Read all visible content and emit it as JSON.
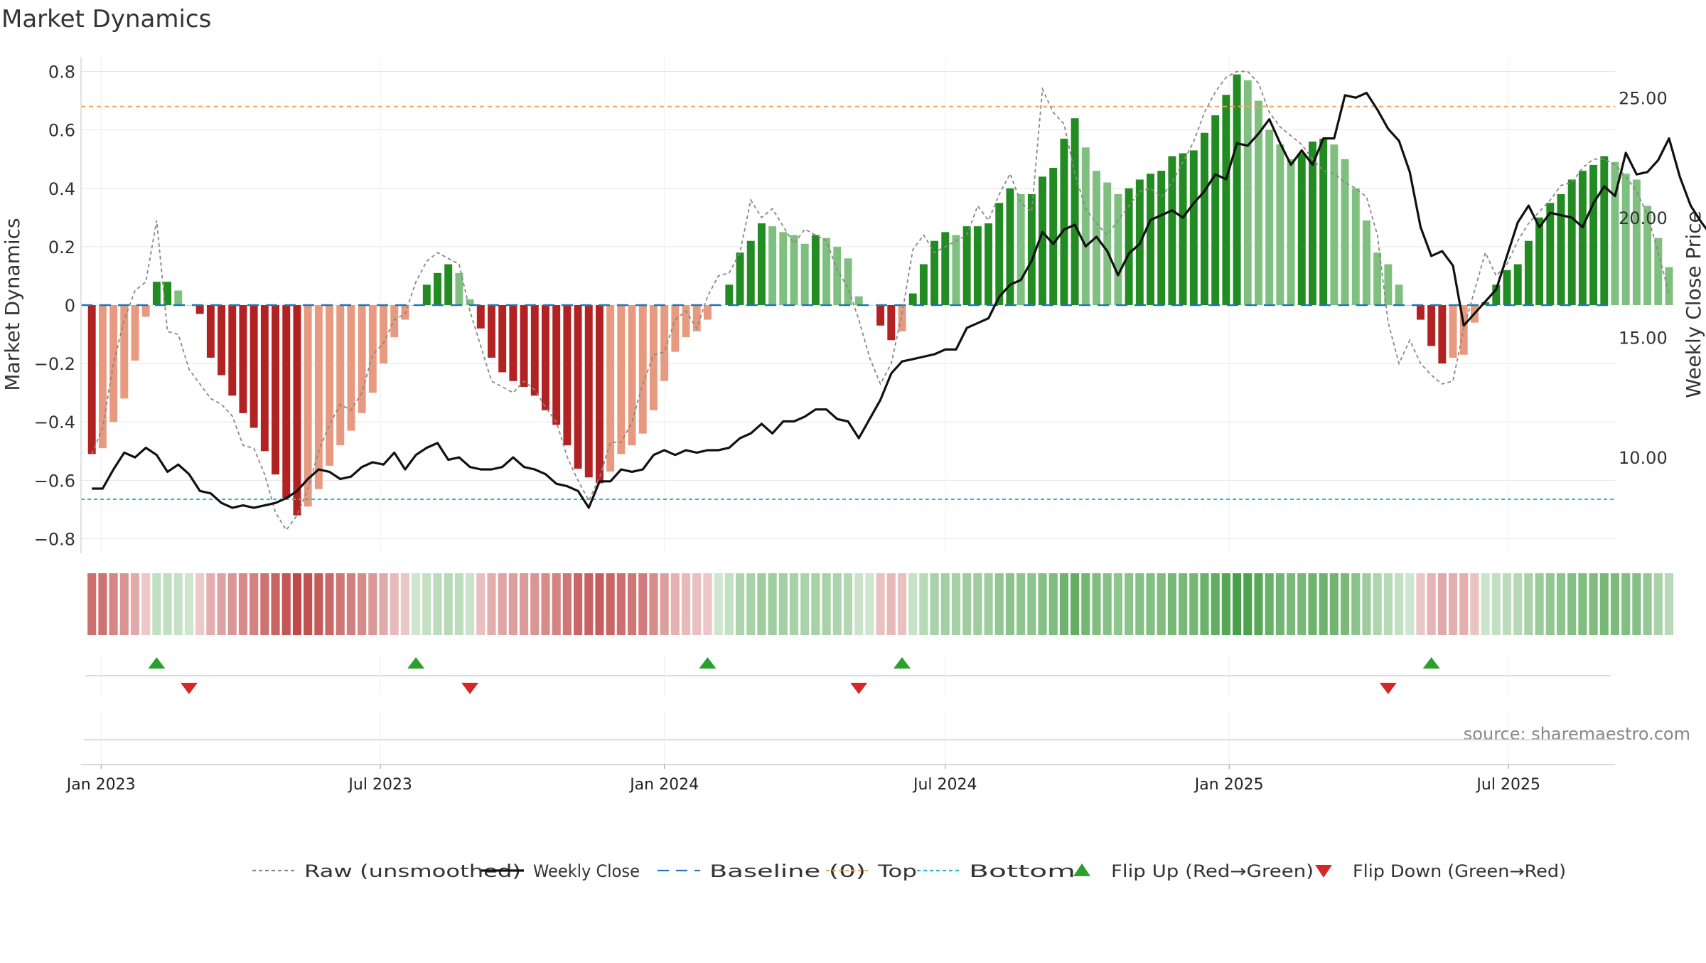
{
  "chart_data": {
    "type": "bar",
    "title": "Market Dynamics",
    "ylabel": "Market Dynamics",
    "y2label": "Weekly Close Price",
    "ylim": [
      -0.85,
      0.85
    ],
    "y2lim": [
      6.0,
      26.7
    ],
    "yticks": [
      0.8,
      0.6,
      0.4,
      0.2,
      0,
      -0.2,
      -0.4,
      -0.6,
      -0.8
    ],
    "ytick_labels": [
      "0.8",
      "0.6",
      "0.4",
      "0.2",
      "0",
      "−0.2",
      "−0.4",
      "−0.6",
      "−0.8"
    ],
    "y2ticks": [
      25,
      20,
      15,
      10
    ],
    "y2tick_labels": [
      "25.00",
      "20.00",
      "15.00",
      "10.00"
    ],
    "xlim": [
      "2022-12-19",
      "2025-09-08"
    ],
    "start_date": "2022-12-26",
    "xticks": [
      "2023-01-01",
      "2023-07-01",
      "2024-01-01",
      "2024-07-01",
      "2025-01-01",
      "2025-07-01"
    ],
    "xtick_labels": [
      "Jan 2023",
      "Jul 2023",
      "Jan 2024",
      "Jul 2024",
      "Jan 2025",
      "Jul 2025"
    ],
    "top_level": 0.68,
    "bottom_level": -0.665,
    "baseline": 0,
    "grid": true,
    "legend_position": "bottom-center",
    "colors": {
      "strong_up": "#228b22",
      "weak_up": "#7fbf7f",
      "strong_down": "#b22222",
      "weak_down": "#e79a80",
      "raw": "#888888",
      "close": "#111111",
      "baseline": "#1f77b4",
      "top": "#f4a460",
      "bottom": "#17becf",
      "flip_up": "#2ca02c",
      "flip_down": "#d62728"
    },
    "series": [
      {
        "name": "Market Dynamics",
        "values": [
          -0.51,
          -0.49,
          -0.4,
          -0.32,
          -0.19,
          -0.04,
          0.08,
          0.08,
          0.05,
          0.0,
          -0.03,
          -0.18,
          -0.24,
          -0.31,
          -0.37,
          -0.42,
          -0.5,
          -0.58,
          -0.66,
          -0.72,
          -0.69,
          -0.63,
          -0.55,
          -0.48,
          -0.43,
          -0.37,
          -0.3,
          -0.2,
          -0.11,
          -0.05,
          0.0,
          0.07,
          0.11,
          0.14,
          0.11,
          0.02,
          -0.08,
          -0.18,
          -0.23,
          -0.26,
          -0.28,
          -0.31,
          -0.36,
          -0.41,
          -0.48,
          -0.56,
          -0.59,
          -0.61,
          -0.57,
          -0.51,
          -0.48,
          -0.44,
          -0.36,
          -0.26,
          -0.16,
          -0.11,
          -0.09,
          -0.05,
          0.0,
          0.07,
          0.18,
          0.22,
          0.28,
          0.27,
          0.25,
          0.24,
          0.21,
          0.24,
          0.23,
          0.2,
          0.16,
          0.03,
          0.0,
          -0.07,
          -0.12,
          -0.09,
          0.04,
          0.14,
          0.22,
          0.25,
          0.24,
          0.27,
          0.27,
          0.28,
          0.35,
          0.4,
          0.38,
          0.38,
          0.44,
          0.47,
          0.57,
          0.64,
          0.54,
          0.46,
          0.42,
          0.38,
          0.4,
          0.43,
          0.45,
          0.46,
          0.51,
          0.52,
          0.53,
          0.59,
          0.65,
          0.72,
          0.79,
          0.77,
          0.7,
          0.6,
          0.55,
          0.5,
          0.52,
          0.56,
          0.57,
          0.55,
          0.5,
          0.4,
          0.29,
          0.18,
          0.14,
          0.07,
          0.0,
          -0.05,
          -0.14,
          -0.2,
          -0.18,
          -0.17,
          -0.06,
          0.01,
          0.07,
          0.12,
          0.14,
          0.22,
          0.3,
          0.35,
          0.38,
          0.43,
          0.46,
          0.48,
          0.51,
          0.49,
          0.45,
          0.43,
          0.34,
          0.23,
          0.13
        ]
      },
      {
        "name": "Raw (unsmoothed)",
        "values": [
          -0.51,
          -0.42,
          -0.2,
          -0.05,
          0.05,
          0.08,
          0.29,
          -0.09,
          -0.1,
          -0.22,
          -0.27,
          -0.32,
          -0.34,
          -0.38,
          -0.48,
          -0.49,
          -0.58,
          -0.71,
          -0.77,
          -0.72,
          -0.63,
          -0.5,
          -0.41,
          -0.34,
          -0.36,
          -0.3,
          -0.17,
          -0.13,
          -0.05,
          -0.03,
          0.08,
          0.15,
          0.18,
          0.16,
          0.14,
          -0.02,
          -0.14,
          -0.26,
          -0.28,
          -0.3,
          -0.26,
          -0.29,
          -0.35,
          -0.4,
          -0.52,
          -0.6,
          -0.67,
          -0.59,
          -0.47,
          -0.47,
          -0.4,
          -0.27,
          -0.17,
          -0.16,
          -0.05,
          -0.02,
          -0.08,
          0.03,
          0.1,
          0.11,
          0.18,
          0.36,
          0.3,
          0.33,
          0.27,
          0.21,
          0.26,
          0.24,
          0.22,
          0.12,
          0.06,
          -0.05,
          -0.18,
          -0.27,
          -0.2,
          -0.03,
          0.19,
          0.24,
          0.18,
          0.2,
          0.22,
          0.24,
          0.34,
          0.29,
          0.38,
          0.45,
          0.35,
          0.32,
          0.74,
          0.66,
          0.62,
          0.45,
          0.33,
          0.28,
          0.24,
          0.29,
          0.34,
          0.39,
          0.4,
          0.37,
          0.42,
          0.49,
          0.56,
          0.66,
          0.73,
          0.78,
          0.8,
          0.8,
          0.76,
          0.66,
          0.61,
          0.58,
          0.55,
          0.5,
          0.46,
          0.45,
          0.42,
          0.4,
          0.37,
          0.24,
          -0.06,
          -0.2,
          -0.12,
          -0.2,
          -0.24,
          -0.27,
          -0.26,
          -0.08,
          0.05,
          0.18,
          0.1,
          0.14,
          0.22,
          0.28,
          0.32,
          0.36,
          0.41,
          0.42,
          0.47,
          0.5,
          0.5,
          0.48,
          0.44,
          0.39,
          0.31,
          0.18,
          0.04
        ]
      },
      {
        "name": "Weekly Close",
        "values": [
          8.7,
          8.7,
          9.5,
          10.2,
          10.0,
          10.4,
          10.1,
          9.4,
          9.7,
          9.3,
          8.6,
          8.5,
          8.1,
          7.9,
          8.0,
          7.9,
          8.0,
          8.1,
          8.3,
          8.6,
          9.1,
          9.5,
          9.4,
          9.1,
          9.2,
          9.6,
          9.8,
          9.7,
          10.2,
          9.5,
          10.1,
          10.4,
          10.6,
          9.9,
          10.0,
          9.6,
          9.5,
          9.5,
          9.6,
          10.0,
          9.6,
          9.5,
          9.3,
          8.9,
          8.8,
          8.6,
          7.9,
          9.0,
          9.0,
          9.5,
          9.4,
          9.5,
          10.1,
          10.3,
          10.1,
          10.3,
          10.2,
          10.3,
          10.3,
          10.4,
          10.8,
          11.0,
          11.4,
          11.0,
          11.5,
          11.5,
          11.7,
          12.0,
          12.0,
          11.6,
          11.5,
          10.8,
          11.6,
          12.4,
          13.5,
          14.0,
          14.1,
          14.2,
          14.3,
          14.5,
          14.5,
          15.4,
          15.6,
          15.8,
          16.7,
          17.2,
          17.4,
          18.2,
          19.4,
          18.9,
          19.5,
          19.7,
          18.8,
          19.2,
          18.6,
          17.6,
          18.5,
          18.9,
          19.9,
          20.1,
          20.3,
          20.0,
          20.6,
          21.1,
          21.8,
          21.6,
          23.1,
          23.0,
          23.5,
          24.1,
          23.1,
          22.2,
          22.8,
          22.2,
          23.3,
          23.3,
          25.1,
          25.0,
          25.2,
          24.5,
          23.7,
          23.2,
          21.9,
          19.6,
          18.4,
          18.6,
          18.0,
          15.5,
          16.0,
          16.5,
          17.0,
          18.4,
          19.8,
          20.5,
          19.6,
          20.2,
          20.1,
          20.0,
          19.6,
          20.6,
          21.3,
          20.9,
          22.7,
          21.8,
          21.9,
          22.4,
          23.3,
          21.7,
          20.5,
          19.8,
          19.2
        ]
      }
    ],
    "flip_up_weeks": [
      6,
      30,
      57,
      75,
      124
    ],
    "flip_down_weeks": [
      9,
      35,
      71,
      120
    ]
  },
  "source_text": "source: sharemaestro.com",
  "legend": [
    {
      "label": "Raw (unsmoothed)",
      "kind": "dashed-line",
      "color": "#888888"
    },
    {
      "label": "Weekly Close",
      "kind": "line",
      "color": "#111111"
    },
    {
      "label": "Baseline (0)",
      "kind": "long-dash-line",
      "color": "#1f77b4"
    },
    {
      "label": "Top",
      "kind": "dashed-line",
      "color": "#f4a460"
    },
    {
      "label": "Bottom",
      "kind": "dashed-line",
      "color": "#17becf"
    },
    {
      "label": "Flip Up (Red→Green)",
      "kind": "triangle-up",
      "color": "#2ca02c"
    },
    {
      "label": "Flip Down (Green→Red)",
      "kind": "triangle-down",
      "color": "#d62728"
    }
  ]
}
